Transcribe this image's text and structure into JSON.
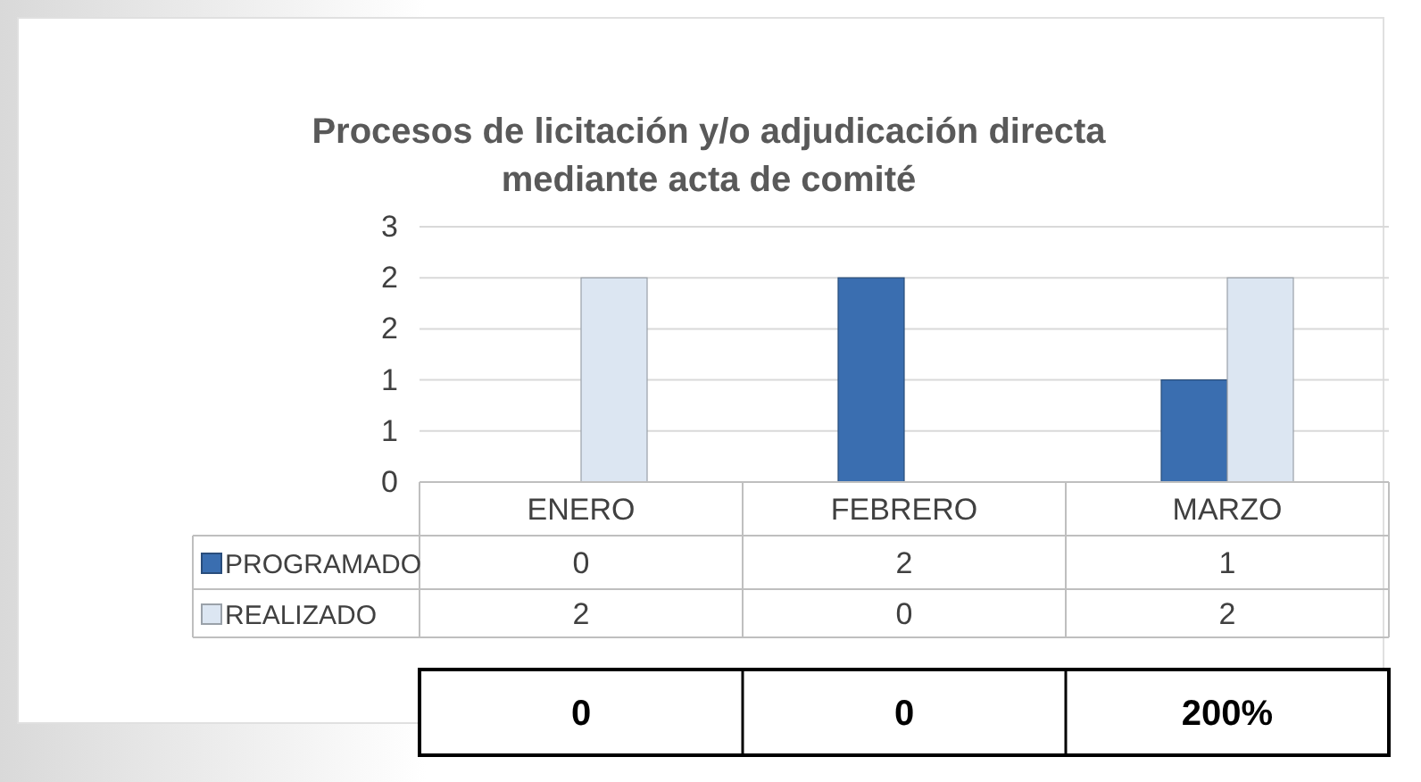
{
  "chart_data": {
    "type": "bar",
    "title": "Procesos de licitación y/o adjudicación directa\nmediante acta de comité",
    "categories": [
      "ENERO",
      "FEBRERO",
      "MARZO"
    ],
    "series": [
      {
        "name": "PROGRAMADO",
        "color": "#3a6eb0",
        "values": [
          0,
          2,
          1
        ]
      },
      {
        "name": "REALIZADO",
        "color": "#dce6f2",
        "values": [
          2,
          0,
          2
        ]
      }
    ],
    "ylim": [
      0,
      2.5
    ],
    "yticks": [
      0,
      {
        "value": 0.5,
        "label": "1"
      },
      1,
      {
        "value": 1.5,
        "label": "2"
      },
      2,
      {
        "value": 2.5,
        "label": "3"
      }
    ],
    "grid": "y",
    "legend": "bottom left",
    "data_labels": true,
    "annotations": [
      "0",
      "0",
      "200%"
    ]
  }
}
